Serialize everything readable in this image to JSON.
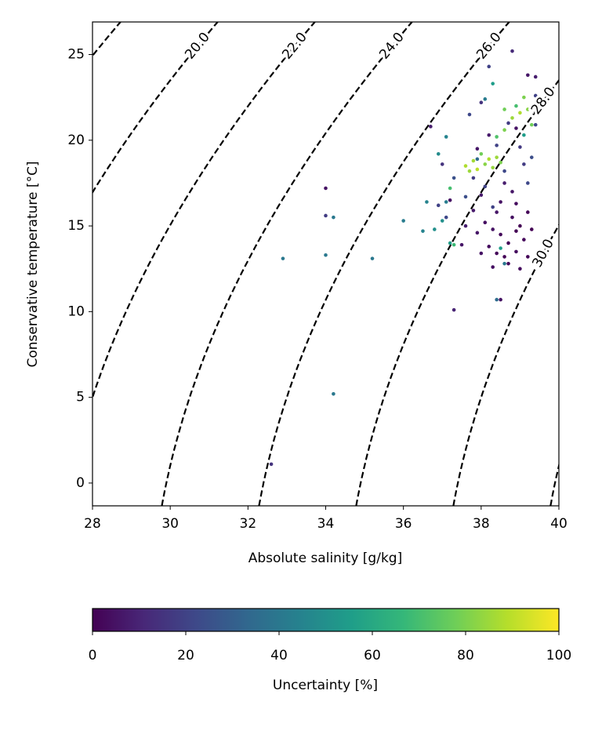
{
  "chart_data": {
    "type": "scatter",
    "xlabel": "Absolute salinity [g/kg]",
    "ylabel": "Conservative temperature [°C]",
    "xlim": [
      28,
      40
    ],
    "xticks": [
      28,
      30,
      32,
      34,
      36,
      38,
      40
    ],
    "ylim": [
      -1.33,
      26.9
    ],
    "yticks": [
      0,
      5,
      10,
      15,
      20,
      25
    ],
    "contours": {
      "color": "#000000",
      "style": "dashed",
      "levels": [
        18,
        {
          "value": 20,
          "label": "20.0"
        },
        {
          "value": 22,
          "label": "22.0"
        },
        {
          "value": 24,
          "label": "24.0"
        },
        {
          "value": 26,
          "label": "26.0"
        },
        {
          "value": 28,
          "label": "28.0"
        },
        {
          "value": 30,
          "label": "30.0"
        },
        32
      ]
    },
    "colormap": "viridis",
    "colorbar": {
      "label": "Uncertainty [%]",
      "clim": [
        0,
        100
      ],
      "ticks": [
        0,
        20,
        40,
        60,
        80,
        100
      ]
    },
    "x": [
      37.6,
      37.7,
      37.9,
      38.1,
      38.2,
      38.4,
      38.5,
      37.8,
      38,
      38.3,
      38.6,
      38.8,
      39,
      39.2,
      39.3,
      38.9,
      38.6,
      39.1,
      37.2,
      37.3,
      38.4,
      37.1,
      36.9,
      36.5,
      37.2,
      37,
      36,
      37.1,
      38.6,
      38.5,
      38.1,
      37.9,
      36.8,
      38.4,
      34.2,
      32.9,
      34,
      35.2,
      34.2,
      36.6,
      39.1,
      38.3,
      38.1,
      38.6,
      39.1,
      38.3,
      37.6,
      39,
      38.4,
      37.7,
      37,
      37.3,
      36.9,
      39.2,
      39.3,
      38.7,
      39.4,
      34,
      37.1,
      38,
      38.2,
      38.8,
      39.4,
      37.8,
      38.5,
      38.7,
      38.9,
      39,
      39.1,
      38.8,
      38.6,
      38.3,
      38.2,
      39.2,
      38.9,
      38.4,
      38.1,
      37.9,
      38,
      38.7,
      39.2,
      39.3,
      38.5,
      38.8,
      37.8,
      37.6,
      38.3,
      39,
      38.6,
      37.5,
      39.5,
      38,
      38.9,
      38.4,
      37.2,
      36.7,
      39.2,
      39.4,
      38.9,
      38.2,
      37.9,
      37.3,
      38.5,
      32.6,
      34
    ],
    "y": [
      18.5,
      18.2,
      18.3,
      18.6,
      18.9,
      19,
      18.7,
      18.8,
      19.2,
      18.4,
      20.6,
      21.3,
      21.6,
      21.8,
      20.9,
      22,
      21.8,
      22.5,
      17.2,
      13.9,
      20.2,
      20.2,
      19.2,
      14.7,
      14,
      15.3,
      15.3,
      16.4,
      12.8,
      13.7,
      22.4,
      18.9,
      14.8,
      10.7,
      15.5,
      13.1,
      13.3,
      13.1,
      5.2,
      16.4,
      20.3,
      23.3,
      17.3,
      18.2,
      18.6,
      16.1,
      16.7,
      19.6,
      19.7,
      21.5,
      18.6,
      17.8,
      16.2,
      17.5,
      19,
      21,
      22.6,
      15.6,
      15.5,
      22.2,
      24.3,
      25.2,
      20.9,
      17.8,
      14.5,
      14,
      13.5,
      15,
      14.2,
      15.5,
      13.2,
      14.8,
      13.8,
      15.8,
      16.3,
      15.8,
      15.2,
      14.6,
      13.4,
      12.8,
      13.2,
      14.8,
      16.4,
      17,
      15.9,
      15,
      12.6,
      12.5,
      17.5,
      13.9,
      13.5,
      16.8,
      14.7,
      13.4,
      16.5,
      20.8,
      23.8,
      23.7,
      20.7,
      20.3,
      19.5,
      10.1,
      10.7,
      1.1,
      17.2
    ],
    "c": [
      88,
      85,
      90,
      82,
      88,
      85,
      80,
      86,
      78,
      84,
      80,
      85,
      88,
      82,
      78,
      70,
      78,
      80,
      70,
      68,
      72,
      45,
      48,
      45,
      55,
      50,
      42,
      42,
      40,
      55,
      42,
      35,
      50,
      35,
      40,
      40,
      40,
      40,
      40,
      45,
      55,
      55,
      20,
      22,
      18,
      20,
      24,
      17,
      20,
      22,
      15,
      25,
      20,
      22,
      24,
      18,
      20,
      18,
      22,
      15,
      20,
      12,
      22,
      18,
      2,
      1,
      3,
      0,
      2,
      4,
      1,
      5,
      3,
      1,
      3,
      6,
      4,
      6,
      5,
      2,
      1,
      0,
      5,
      6,
      7,
      8,
      4,
      3,
      8,
      6,
      4,
      7,
      0,
      2,
      5,
      8,
      6,
      8,
      5,
      7,
      6,
      10,
      5,
      15,
      5
    ]
  }
}
